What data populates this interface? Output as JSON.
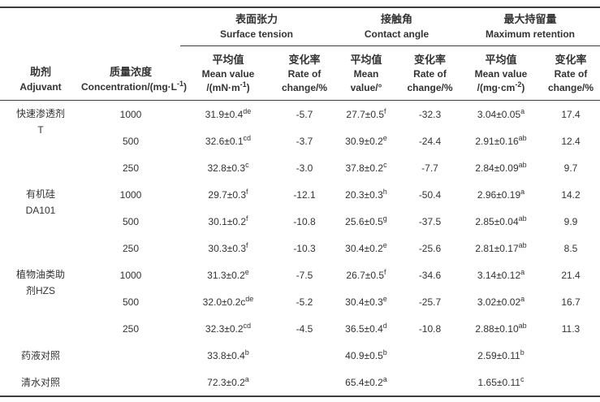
{
  "colors": {
    "text": "#333333",
    "line": "#3d3d3d",
    "background": "#ffffff"
  },
  "header": {
    "adjuvant": {
      "zh": "助剂",
      "en": "Adjuvant"
    },
    "concentration": {
      "zh": "质量浓度",
      "en_pre": "Concentration/(mg·L",
      "en_sup": "-1",
      "en_post": ")"
    },
    "groups": [
      {
        "zh": "表面张力",
        "en": "Surface tension"
      },
      {
        "zh": "接触角",
        "en": "Contact angle"
      },
      {
        "zh": "最大持留量",
        "en": "Maximum retention"
      }
    ],
    "sub": [
      {
        "zh": "平均值",
        "l2": "Mean value",
        "l3_pre": "/(mN·m",
        "l3_sup": "-1",
        "l3_post": ")"
      },
      {
        "zh": "变化率",
        "l2": "Rate of",
        "l3": "change/%"
      },
      {
        "zh": "平均值",
        "l2": "Mean",
        "l3": "value/°"
      },
      {
        "zh": "变化率",
        "l2": "Rate of",
        "l3": "change/%"
      },
      {
        "zh": "平均值",
        "l2": "Mean value",
        "l3_pre": "/(mg·cm",
        "l3_sup": "-2",
        "l3_post": ")"
      },
      {
        "zh": "变化率",
        "l2": "Rate of",
        "l3": "change/%"
      }
    ]
  },
  "body": {
    "groups": [
      {
        "adjuvant_lines": [
          "快速渗透剂",
          "T"
        ],
        "rows": [
          {
            "conc": "1000",
            "st_mean": {
              "v": "31.9±0.4",
              "s": "de"
            },
            "st_rate": "-5.7",
            "ca_mean": {
              "v": "27.7±0.5",
              "s": "f"
            },
            "ca_rate": "-32.3",
            "mr_mean": {
              "v": "3.04±0.05",
              "s": "a"
            },
            "mr_rate": "17.4"
          },
          {
            "conc": "500",
            "st_mean": {
              "v": "32.6±0.1",
              "s": "cd"
            },
            "st_rate": "-3.7",
            "ca_mean": {
              "v": "30.9±0.2",
              "s": "e"
            },
            "ca_rate": "-24.4",
            "mr_mean": {
              "v": "2.91±0.16",
              "s": "ab"
            },
            "mr_rate": "12.4"
          },
          {
            "conc": "250",
            "st_mean": {
              "v": "32.8±0.3",
              "s": "c"
            },
            "st_rate": "-3.0",
            "ca_mean": {
              "v": "37.8±0.2",
              "s": "c"
            },
            "ca_rate": "-7.7",
            "mr_mean": {
              "v": "2.84±0.09",
              "s": "ab"
            },
            "mr_rate": "9.7"
          }
        ]
      },
      {
        "adjuvant_lines": [
          "有机硅",
          "DA101"
        ],
        "rows": [
          {
            "conc": "1000",
            "st_mean": {
              "v": "29.7±0.3",
              "s": "f"
            },
            "st_rate": "-12.1",
            "ca_mean": {
              "v": "20.3±0.3",
              "s": "h"
            },
            "ca_rate": "-50.4",
            "mr_mean": {
              "v": "2.96±0.19",
              "s": "a"
            },
            "mr_rate": "14.2"
          },
          {
            "conc": "500",
            "st_mean": {
              "v": "30.1±0.2",
              "s": "f"
            },
            "st_rate": "-10.8",
            "ca_mean": {
              "v": "25.6±0.5",
              "s": "g"
            },
            "ca_rate": "-37.5",
            "mr_mean": {
              "v": "2.85±0.04",
              "s": "ab"
            },
            "mr_rate": "9.9"
          },
          {
            "conc": "250",
            "st_mean": {
              "v": "30.3±0.3",
              "s": "f"
            },
            "st_rate": "-10.3",
            "ca_mean": {
              "v": "30.4±0.2",
              "s": "e"
            },
            "ca_rate": "-25.6",
            "mr_mean": {
              "v": "2.81±0.17",
              "s": "ab"
            },
            "mr_rate": "8.5"
          }
        ]
      },
      {
        "adjuvant_lines": [
          "植物油类助",
          "剂HZS"
        ],
        "rows": [
          {
            "conc": "1000",
            "st_mean": {
              "v": "31.3±0.2",
              "s": "e"
            },
            "st_rate": "-7.5",
            "ca_mean": {
              "v": "26.7±0.5",
              "s": "f"
            },
            "ca_rate": "-34.6",
            "mr_mean": {
              "v": "3.14±0.12",
              "s": "a"
            },
            "mr_rate": "21.4"
          },
          {
            "conc": "500",
            "st_mean": {
              "v": "32.0±0.2c",
              "s": "de"
            },
            "st_rate": "-5.2",
            "ca_mean": {
              "v": "30.4±0.3",
              "s": "e"
            },
            "ca_rate": "-25.7",
            "mr_mean": {
              "v": "3.02±0.02",
              "s": "a"
            },
            "mr_rate": "16.7"
          },
          {
            "conc": "250",
            "st_mean": {
              "v": "32.3±0.2",
              "s": "cd"
            },
            "st_rate": "-4.5",
            "ca_mean": {
              "v": "36.5±0.4",
              "s": "d"
            },
            "ca_rate": "-10.8",
            "mr_mean": {
              "v": "2.88±0.10",
              "s": "ab"
            },
            "mr_rate": "11.3"
          }
        ]
      }
    ],
    "controls": [
      {
        "label": "药液对照",
        "st_mean": {
          "v": "33.8±0.4",
          "s": "b"
        },
        "ca_mean": {
          "v": "40.9±0.5",
          "s": "b"
        },
        "mr_mean": {
          "v": "2.59±0.11",
          "s": "b"
        }
      },
      {
        "label": "清水对照",
        "st_mean": {
          "v": "72.3±0.2",
          "s": "a"
        },
        "ca_mean": {
          "v": "65.4±0.2",
          "s": "a"
        },
        "mr_mean": {
          "v": "1.65±0.11",
          "s": "c"
        }
      }
    ]
  }
}
